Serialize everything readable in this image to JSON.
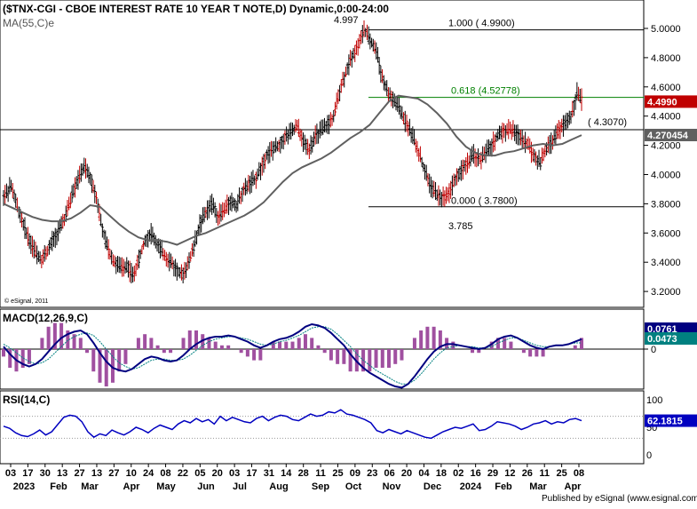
{
  "chart_data": {
    "type": "line",
    "title": "($TNX-CGI - CBOE INTEREST RATE 10 YEAR T NOTE,D) Dynamic,0:00-24:00",
    "ma_label": "MA(55,C)e",
    "copyright": "© eSignal, 2011",
    "publisher": "Published by eSignal (www.esignal.com)",
    "price_panel": {
      "ylim": [
        3.1,
        5.1
      ],
      "yticks": [
        "5.0000",
        "4.8000",
        "4.6000",
        "4.4000",
        "4.2000",
        "4.0000",
        "3.8000",
        "3.6000",
        "3.4000",
        "3.2000"
      ],
      "last_price": "4.4990",
      "ma_value": "4.270454",
      "price_series": [
        3.86,
        3.92,
        3.78,
        3.66,
        3.55,
        3.47,
        3.42,
        3.48,
        3.56,
        3.63,
        3.72,
        3.86,
        3.97,
        4.05,
        3.98,
        3.85,
        3.62,
        3.48,
        3.4,
        3.36,
        3.38,
        3.3,
        3.42,
        3.55,
        3.6,
        3.52,
        3.46,
        3.41,
        3.36,
        3.31,
        3.38,
        3.5,
        3.66,
        3.74,
        3.8,
        3.72,
        3.75,
        3.82,
        3.79,
        3.88,
        3.93,
        3.96,
        4.04,
        4.14,
        4.17,
        4.2,
        4.26,
        4.29,
        4.33,
        4.22,
        4.18,
        4.26,
        4.3,
        4.34,
        4.39,
        4.58,
        4.7,
        4.81,
        4.88,
        4.99,
        4.92,
        4.85,
        4.66,
        4.55,
        4.5,
        4.43,
        4.35,
        4.26,
        4.15,
        4.02,
        3.92,
        3.86,
        3.84,
        3.88,
        3.97,
        4.03,
        4.08,
        4.13,
        4.1,
        4.15,
        4.2,
        4.27,
        4.3,
        4.31,
        4.28,
        4.25,
        4.2,
        4.12,
        4.08,
        4.18,
        4.23,
        4.3,
        4.35,
        4.4,
        4.56,
        4.5
      ],
      "ma_series": [
        3.8,
        3.77,
        3.74,
        3.71,
        3.69,
        3.68,
        3.68,
        3.7,
        3.74,
        3.79,
        3.78,
        3.72,
        3.66,
        3.61,
        3.57,
        3.55,
        3.55,
        3.54,
        3.52,
        3.55,
        3.58,
        3.6,
        3.63,
        3.66,
        3.69,
        3.72,
        3.76,
        3.81,
        3.88,
        3.95,
        4.01,
        4.05,
        4.08,
        4.11,
        4.15,
        4.2,
        4.25,
        4.29,
        4.34,
        4.42,
        4.5,
        4.54,
        4.53,
        4.52,
        4.48,
        4.42,
        4.35,
        4.26,
        4.19,
        4.15,
        4.13,
        4.13,
        4.15,
        4.16,
        4.18,
        4.2,
        4.21,
        4.2,
        4.21,
        4.24,
        4.27
      ],
      "fib_levels": [
        {
          "value": 4.99,
          "label": "1.000 ( 4.9900)"
        },
        {
          "value": 4.52778,
          "label": "0.618 (4.52778)"
        },
        {
          "value": 3.78,
          "label": "0.000 ( 3.7800)"
        }
      ],
      "horizontal_line": {
        "value": 4.307,
        "label": "( 4.3070)"
      },
      "annotations": [
        {
          "text": "4.997"
        },
        {
          "text": "3.785"
        }
      ]
    },
    "macd_panel": {
      "label": "MACD(12,26,9,C)",
      "yticks": [
        "0"
      ],
      "value_blue": "0.0761",
      "value_green": "0.0473",
      "macd_series": [
        0.02,
        -0.04,
        -0.09,
        -0.12,
        -0.14,
        -0.12,
        -0.08,
        -0.02,
        0.04,
        0.09,
        0.12,
        0.14,
        0.15,
        0.12,
        0.05,
        -0.03,
        -0.1,
        -0.15,
        -0.17,
        -0.18,
        -0.16,
        -0.12,
        -0.08,
        -0.06,
        -0.07,
        -0.09,
        -0.1,
        -0.09,
        -0.05,
        0.0,
        0.04,
        0.07,
        0.09,
        0.1,
        0.1,
        0.11,
        0.1,
        0.08,
        0.06,
        0.03,
        0.01,
        0.03,
        0.06,
        0.08,
        0.09,
        0.11,
        0.14,
        0.18,
        0.2,
        0.19,
        0.17,
        0.13,
        0.08,
        0.03,
        -0.04,
        -0.1,
        -0.15,
        -0.19,
        -0.22,
        -0.25,
        -0.28,
        -0.3,
        -0.31,
        -0.28,
        -0.22,
        -0.15,
        -0.08,
        -0.02,
        0.02,
        0.04,
        0.04,
        0.03,
        0.02,
        0.01,
        0.0,
        0.01,
        0.04,
        0.08,
        0.1,
        0.11,
        0.09,
        0.06,
        0.03,
        0.01,
        0.0,
        0.02,
        0.03,
        0.03,
        0.04,
        0.06,
        0.08
      ],
      "signal_series": [
        0.04,
        0.01,
        -0.03,
        -0.07,
        -0.1,
        -0.12,
        -0.11,
        -0.08,
        -0.03,
        0.02,
        0.07,
        0.1,
        0.12,
        0.13,
        0.11,
        0.06,
        0.0,
        -0.06,
        -0.11,
        -0.14,
        -0.16,
        -0.15,
        -0.12,
        -0.09,
        -0.08,
        -0.08,
        -0.09,
        -0.09,
        -0.08,
        -0.05,
        -0.01,
        0.03,
        0.06,
        0.08,
        0.09,
        0.1,
        0.1,
        0.09,
        0.08,
        0.06,
        0.04,
        0.03,
        0.04,
        0.06,
        0.07,
        0.09,
        0.11,
        0.14,
        0.17,
        0.18,
        0.18,
        0.16,
        0.12,
        0.07,
        0.02,
        -0.04,
        -0.09,
        -0.13,
        -0.17,
        -0.2,
        -0.23,
        -0.26,
        -0.28,
        -0.28,
        -0.25,
        -0.2,
        -0.14,
        -0.08,
        -0.03,
        0.01,
        0.02,
        0.03,
        0.02,
        0.02,
        0.01,
        0.01,
        0.02,
        0.05,
        0.07,
        0.09,
        0.09,
        0.07,
        0.05,
        0.03,
        0.02,
        0.02,
        0.03,
        0.03,
        0.04,
        0.05,
        0.05
      ]
    },
    "rsi_panel": {
      "label": "RSI(14,C)",
      "yticks": [
        "100",
        "50",
        "0"
      ],
      "value": "62.1815",
      "rsi_series": [
        52,
        48,
        40,
        35,
        33,
        38,
        45,
        36,
        42,
        55,
        68,
        72,
        70,
        60,
        42,
        32,
        38,
        35,
        45,
        40,
        36,
        42,
        50,
        46,
        40,
        48,
        54,
        50,
        46,
        56,
        62,
        58,
        66,
        60,
        64,
        56,
        70,
        62,
        68,
        64,
        60,
        58,
        66,
        70,
        62,
        68,
        72,
        70,
        64,
        62,
        68,
        74,
        70,
        72,
        78,
        76,
        82,
        74,
        72,
        68,
        64,
        58,
        44,
        40,
        46,
        42,
        38,
        44,
        40,
        36,
        32,
        30,
        36,
        42,
        46,
        50,
        48,
        52,
        56,
        44,
        46,
        52,
        60,
        58,
        56,
        52,
        46,
        50,
        56,
        58,
        62,
        56,
        60,
        58,
        64,
        66,
        62
      ]
    },
    "x_axis": {
      "date_labels": [
        "03",
        "17",
        "30",
        "13",
        "27",
        "13",
        "27",
        "10",
        "24",
        "08",
        "22",
        "05",
        "20",
        "03",
        "17",
        "31",
        "14",
        "28",
        "11",
        "25",
        "09",
        "23",
        "06",
        "20",
        "04",
        "18",
        "02",
        "16",
        "29",
        "12",
        "26",
        "11",
        "25",
        "08"
      ],
      "month_labels": [
        "2023",
        "Feb",
        "Mar",
        "Apr",
        "May",
        "Jun",
        "Jul",
        "Aug",
        "Sep",
        "Oct",
        "Nov",
        "Dec",
        "2024",
        "Feb",
        "Mar",
        "Apr"
      ]
    },
    "colors": {
      "price_bar": "#000000",
      "down_bar": "#c00000",
      "ma_line": "#606060",
      "fib_line": "#000000",
      "fib_618_line": "#008000",
      "macd_line": "#000080",
      "signal_line": "#008080",
      "histogram": "#a050a0",
      "rsi_line": "#0000c0",
      "last_price_bg": "#c00000",
      "ma_label_bg": "#606060",
      "macd_label_bg": "#000080",
      "signal_label_bg": "#008080",
      "rsi_label_bg": "#0000c0"
    }
  }
}
